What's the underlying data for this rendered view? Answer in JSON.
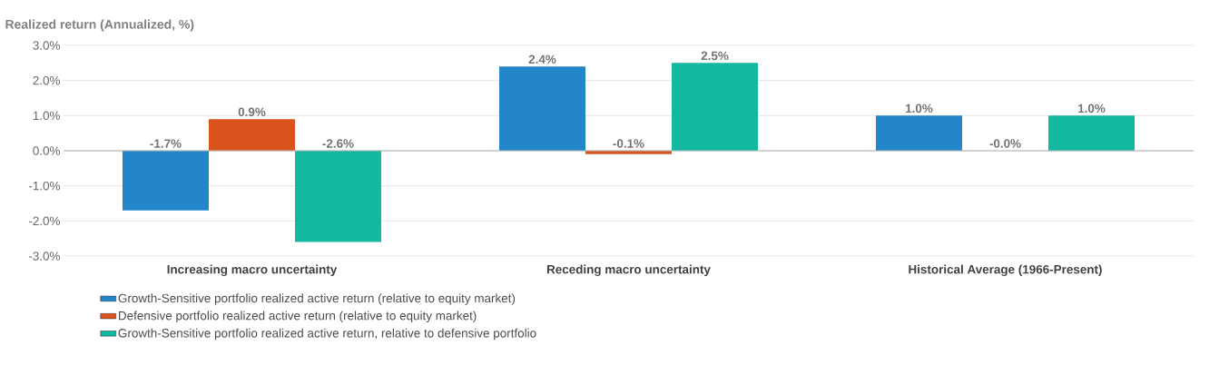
{
  "chart_data": {
    "type": "bar",
    "ylabel": "Realized return (Annualized, %)",
    "categories": [
      "Increasing macro uncertainty",
      "Receding macro uncertainty",
      "Historical Average (1966-Present)"
    ],
    "series": [
      {
        "name": "Growth-Sensitive portfolio realized active return (relative to equity market)",
        "color": "#2386c8",
        "values": [
          -1.7,
          2.4,
          1.0
        ],
        "value_labels": [
          "-1.7%",
          "2.4%",
          "1.0%"
        ]
      },
      {
        "name": "Defensive portfolio realized active return (relative to equity market)",
        "color": "#d9541e",
        "values": [
          0.9,
          -0.1,
          -0.0
        ],
        "value_labels": [
          "0.9%",
          "-0.1%",
          "-0.0%"
        ]
      },
      {
        "name": "Growth-Sensitive portfolio realized active return, relative to defensive portfolio",
        "color": "#12b8a0",
        "values": [
          -2.6,
          2.5,
          1.0
        ],
        "value_labels": [
          "-2.6%",
          "2.5%",
          "1.0%"
        ]
      }
    ],
    "ylim": [
      -3,
      3
    ],
    "yticks": [
      {
        "value": -3,
        "label": "-3.0%"
      },
      {
        "value": -2,
        "label": "-2.0%"
      },
      {
        "value": -1,
        "label": "-1.0%"
      },
      {
        "value": 0,
        "label": "0.0%"
      },
      {
        "value": 1,
        "label": "1.0%"
      },
      {
        "value": 2,
        "label": "2.0%"
      },
      {
        "value": 3,
        "label": "3.0%"
      }
    ],
    "grid": "y",
    "legend": "bottom"
  }
}
